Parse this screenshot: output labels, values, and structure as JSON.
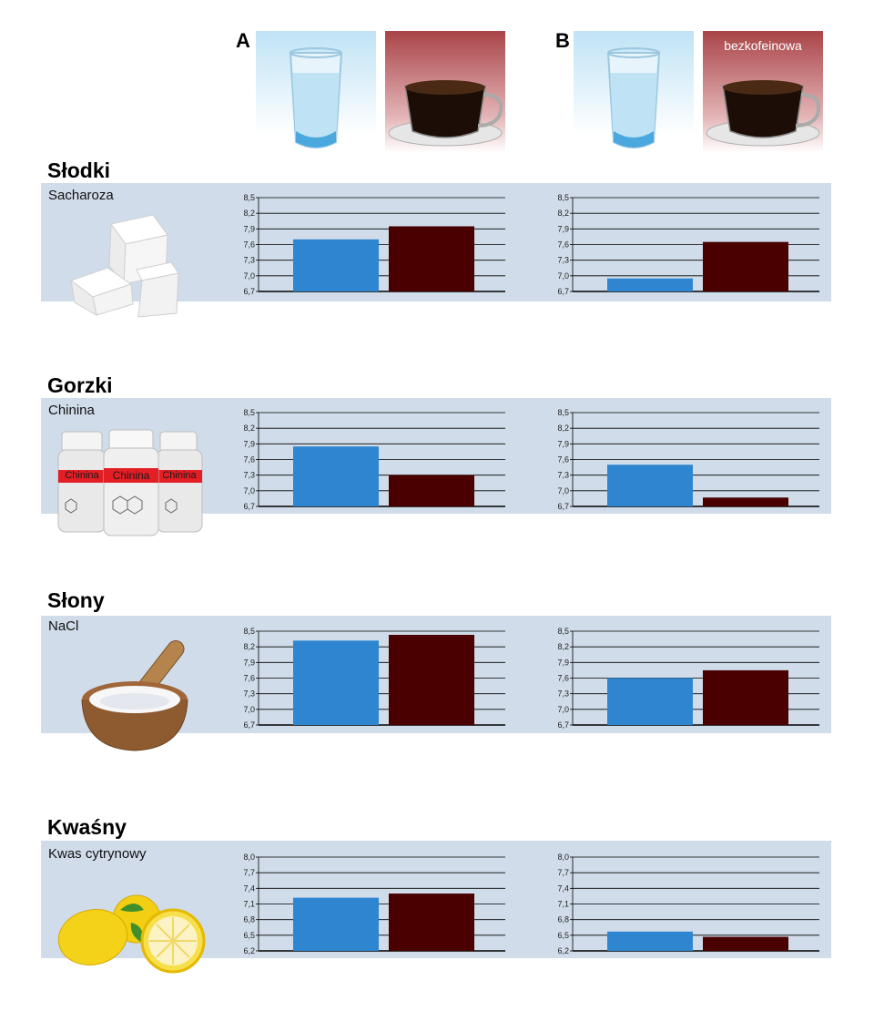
{
  "header": {
    "col_a": "A",
    "col_b": "B",
    "decaf_label": "bezkofeinowa"
  },
  "colors": {
    "water": "#2e86d1",
    "coffee": "#4a0000"
  },
  "rows": [
    {
      "title": "Słodki",
      "compound": "Sacharoza",
      "icon": "sugar-cubes-icon"
    },
    {
      "title": "Gorzki",
      "compound": "Chinina",
      "icon": "quinine-bottles-icon",
      "bottle_label": "Chinina"
    },
    {
      "title": "Słony",
      "compound": "NaCl",
      "icon": "salt-mortar-icon"
    },
    {
      "title": "Kwaśny",
      "compound": "Kwas cytrynowy",
      "icon": "lemons-icon"
    }
  ],
  "chart_data": [
    {
      "type": "bar",
      "row": "Słodki",
      "column": "A",
      "categories": [
        "water",
        "coffee"
      ],
      "values": [
        7.7,
        7.95
      ],
      "ylim": [
        6.7,
        8.5
      ],
      "yticks": [
        "6,7",
        "7,0",
        "7,3",
        "7,6",
        "7,9",
        "8,2",
        "8,5"
      ]
    },
    {
      "type": "bar",
      "row": "Słodki",
      "column": "B",
      "categories": [
        "water",
        "coffee"
      ],
      "values": [
        6.95,
        7.65
      ],
      "ylim": [
        6.7,
        8.5
      ],
      "yticks": [
        "6,7",
        "7,0",
        "7,3",
        "7,6",
        "7,9",
        "8,2",
        "8,5"
      ]
    },
    {
      "type": "bar",
      "row": "Gorzki",
      "column": "A",
      "categories": [
        "water",
        "coffee"
      ],
      "values": [
        7.85,
        7.3
      ],
      "ylim": [
        6.7,
        8.5
      ],
      "yticks": [
        "6,7",
        "7,0",
        "7,3",
        "7,6",
        "7,9",
        "8,2",
        "8,5"
      ]
    },
    {
      "type": "bar",
      "row": "Gorzki",
      "column": "B",
      "categories": [
        "water",
        "coffee"
      ],
      "values": [
        7.5,
        6.87
      ],
      "ylim": [
        6.7,
        8.5
      ],
      "yticks": [
        "6,7",
        "7,0",
        "7,3",
        "7,6",
        "7,9",
        "8,2",
        "8,5"
      ]
    },
    {
      "type": "bar",
      "row": "Słony",
      "column": "A",
      "categories": [
        "water",
        "coffee"
      ],
      "values": [
        8.32,
        8.43
      ],
      "ylim": [
        6.7,
        8.5
      ],
      "yticks": [
        "6,7",
        "7,0",
        "7,3",
        "7,6",
        "7,9",
        "8,2",
        "8,5"
      ]
    },
    {
      "type": "bar",
      "row": "Słony",
      "column": "B",
      "categories": [
        "water",
        "coffee"
      ],
      "values": [
        7.6,
        7.75
      ],
      "ylim": [
        6.7,
        8.5
      ],
      "yticks": [
        "6,7",
        "7,0",
        "7,3",
        "7,6",
        "7,9",
        "8,2",
        "8,5"
      ]
    },
    {
      "type": "bar",
      "row": "Kwaśny",
      "column": "A",
      "categories": [
        "water",
        "coffee"
      ],
      "values": [
        7.22,
        7.3
      ],
      "ylim": [
        6.2,
        8.0
      ],
      "yticks": [
        "6,2",
        "6,5",
        "6,8",
        "7,1",
        "7,4",
        "7,7",
        "8,0"
      ]
    },
    {
      "type": "bar",
      "row": "Kwaśny",
      "column": "B",
      "categories": [
        "water",
        "coffee"
      ],
      "values": [
        6.57,
        6.47
      ],
      "ylim": [
        6.2,
        8.0
      ],
      "yticks": [
        "6,2",
        "6,5",
        "6,8",
        "7,1",
        "7,4",
        "7,7",
        "8,0"
      ]
    }
  ]
}
